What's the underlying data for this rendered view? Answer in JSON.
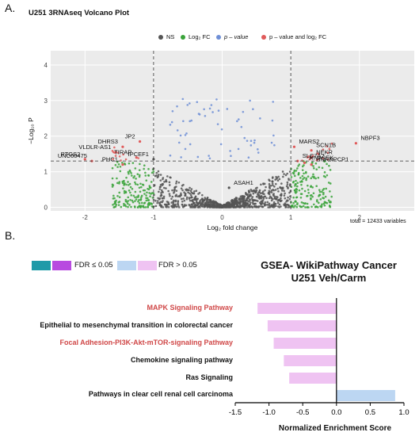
{
  "panel_a": {
    "letter": "A.",
    "title": "U251   3RNAseq Volcano Plot",
    "legend": [
      {
        "label": "NS",
        "color": "#555555"
      },
      {
        "label": "Log₂ FC",
        "color": "#3aa33a"
      },
      {
        "label": "p – value",
        "color": "#6f8fd6"
      },
      {
        "label": "p – value and log₂ FC",
        "color": "#e05a5a"
      }
    ],
    "footnote": "total = 12433 variables"
  },
  "panel_b": {
    "letter": "B.",
    "fdr_le": "FDR ≤ 0.05",
    "fdr_gt": "FDR > 0.05",
    "colors": {
      "teal": "#1f9aa8",
      "purple": "#b84be0",
      "lightblue": "#bcd6f2",
      "lightpink": "#efc3f2",
      "red_label": "#d04848"
    }
  },
  "chart_data": [
    {
      "type": "scatter",
      "title": "U251   3RNAseq Volcano Plot",
      "xlabel": "Log₂ fold change",
      "ylabel": "−Log₁₀ P",
      "xlim": [
        -2.5,
        2.8
      ],
      "ylim": [
        -0.1,
        4.4
      ],
      "xticks": [
        "-2",
        "-1",
        "0",
        "1",
        "2"
      ],
      "yticks": [
        "0",
        "1",
        "2",
        "3",
        "4"
      ],
      "thresholds": {
        "fc": [
          -1,
          1
        ],
        "p": 1.3
      },
      "grid": true,
      "legend_placement": "top",
      "annotations": [
        {
          "label": "DHRS3",
          "x": -1.45,
          "y": 1.7
        },
        {
          "label": "VLDLR-AS1",
          "x": -1.55,
          "y": 1.55
        },
        {
          "label": "JP2",
          "x": -1.2,
          "y": 1.85
        },
        {
          "label": "TIRAP",
          "x": -1.25,
          "y": 1.4
        },
        {
          "label": "IPCEF1",
          "x": -1.0,
          "y": 1.35
        },
        {
          "label": "PTGS2",
          "x": -2.0,
          "y": 1.35
        },
        {
          "label": "UNC00475",
          "x": -1.9,
          "y": 1.3
        },
        {
          "label": "PHC1",
          "x": -1.45,
          "y": 1.2
        },
        {
          "label": "SLC7A2",
          "x": 1.1,
          "y": 1.3
        },
        {
          "label": "MARS2",
          "x": 1.05,
          "y": 1.7
        },
        {
          "label": "SCN1B",
          "x": 1.3,
          "y": 1.6
        },
        {
          "label": "NBPF3",
          "x": 1.95,
          "y": 1.8
        },
        {
          "label": "NEKR",
          "x": 1.3,
          "y": 1.4
        },
        {
          "label": "RNASEK",
          "x": 1.2,
          "y": 1.25
        },
        {
          "label": "HNRNPCP1",
          "x": 1.3,
          "y": 1.2
        },
        {
          "label": "ASAH1",
          "x": 0.1,
          "y": 0.55
        }
      ]
    },
    {
      "type": "bar",
      "title": "GSEA- WikiPathway Cancer",
      "subtitle": "U251 Veh/Carm",
      "xlabel": "Normalized Enrichment Score",
      "xlim": [
        -1.5,
        1.0
      ],
      "xticks": [
        "-1.5",
        "-1.0",
        "-0.5",
        "0.0",
        "0.5",
        "1.0"
      ],
      "categories": [
        "MAPK  Signaling Pathway",
        "Epithelial to mesenchymal transition in colorectal cancer",
        "Focal Adhesion-PI3K-Akt-mTOR-signaling Pathway",
        "Chemokine signaling pathway",
        "Ras Signaling",
        "Pathways in clear cell renal cell carcinoma"
      ],
      "values": [
        -1.17,
        -1.02,
        -0.93,
        -0.78,
        -0.7,
        0.87
      ],
      "highlighted": [
        true,
        false,
        true,
        false,
        false,
        false
      ]
    }
  ]
}
